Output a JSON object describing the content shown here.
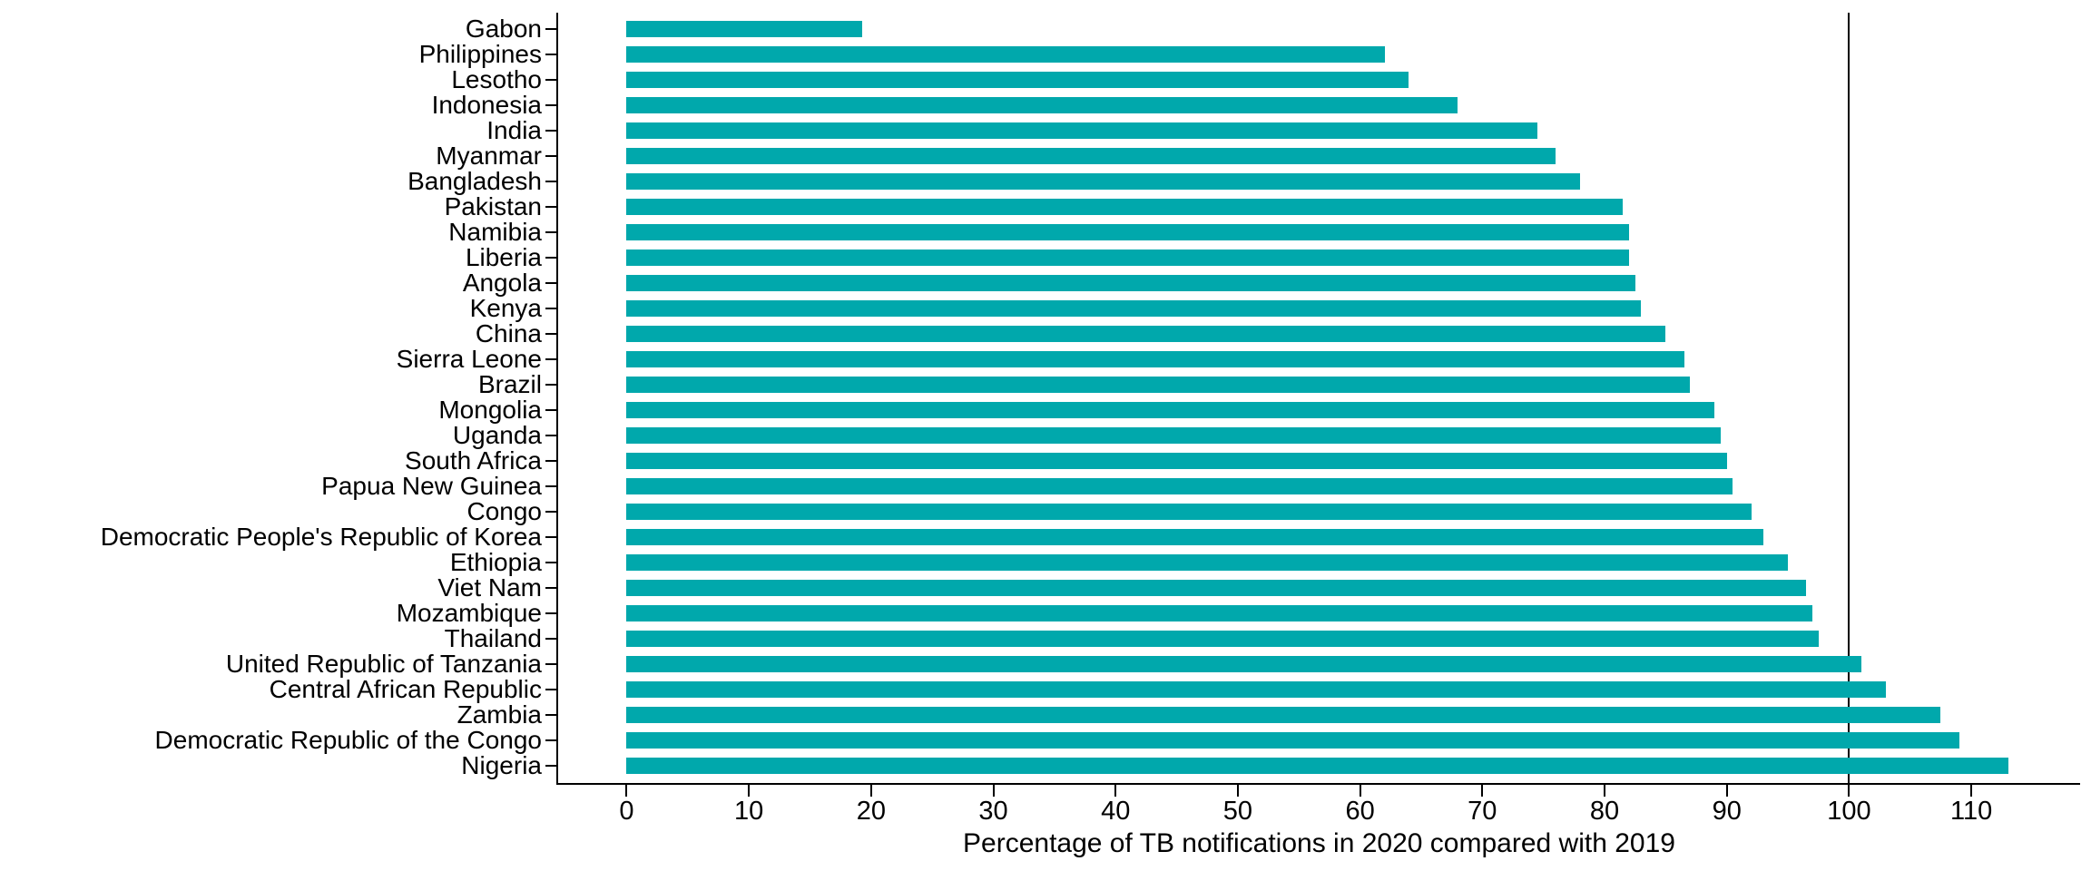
{
  "chart_data": {
    "type": "bar",
    "orientation": "horizontal",
    "title": "",
    "xlabel": "Percentage of TB notifications in 2020 compared with 2019",
    "ylabel": "",
    "categories": [
      "Gabon",
      "Philippines",
      "Lesotho",
      "Indonesia",
      "India",
      "Myanmar",
      "Bangladesh",
      "Pakistan",
      "Namibia",
      "Liberia",
      "Angola",
      "Kenya",
      "China",
      "Sierra Leone",
      "Brazil",
      "Mongolia",
      "Uganda",
      "South Africa",
      "Papua New Guinea",
      "Congo",
      "Democratic People's Republic of Korea",
      "Ethiopia",
      "Viet Nam",
      "Mozambique",
      "Thailand",
      "United Republic of Tanzania",
      "Central African Republic",
      "Zambia",
      "Democratic Republic of the Congo",
      "Nigeria"
    ],
    "values": [
      19.3,
      62,
      64,
      68,
      74.5,
      76,
      78,
      81.5,
      82,
      82,
      82.5,
      83,
      85,
      86.5,
      87,
      89,
      89.5,
      90,
      90.5,
      92,
      93,
      95,
      96.5,
      97,
      97.5,
      101,
      103,
      107.5,
      109,
      113
    ],
    "x_ticks": [
      0,
      10,
      20,
      30,
      40,
      50,
      60,
      70,
      80,
      90,
      100,
      110
    ],
    "xlim": [
      -5.6,
      118.9
    ],
    "reference_line_x": 100,
    "grid": false,
    "legend": false,
    "bar_color": "#00A8AC",
    "axis_color": "#000000",
    "background_color": "#FFFFFF"
  }
}
